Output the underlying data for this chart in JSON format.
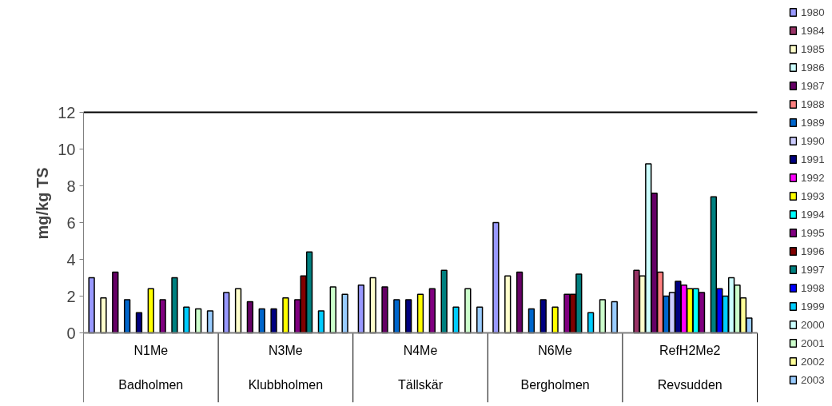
{
  "chart_data": {
    "type": "bar",
    "ylabel": "mg/kg TS",
    "categories": [
      "N1Me\nBadholmen",
      "N3Me\nKlubbholmen",
      "N4Me\nTällskär",
      "N6Me\nBergholmen",
      "RefH2Me2\nRevsudden"
    ],
    "ylim": [
      0,
      12
    ],
    "yticks": [
      0,
      2,
      4,
      6,
      8,
      10,
      12
    ],
    "grid": false,
    "legend": "right",
    "series": [
      {
        "name": "1980",
        "color": "#9999ff",
        "values": [
          3.0,
          2.2,
          2.6,
          6.0,
          null
        ]
      },
      {
        "name": "1984",
        "color": "#993366",
        "values": [
          null,
          null,
          null,
          null,
          3.4
        ]
      },
      {
        "name": "1985",
        "color": "#ffffcc",
        "values": [
          1.9,
          2.4,
          3.0,
          3.1,
          3.1
        ]
      },
      {
        "name": "1986",
        "color": "#ccffff",
        "values": [
          null,
          null,
          null,
          null,
          9.2
        ]
      },
      {
        "name": "1987",
        "color": "#660066",
        "values": [
          3.3,
          1.7,
          2.5,
          3.3,
          7.6
        ]
      },
      {
        "name": "1988",
        "color": "#ff8080",
        "values": [
          null,
          null,
          null,
          null,
          3.3
        ]
      },
      {
        "name": "1989",
        "color": "#0066cc",
        "values": [
          1.8,
          1.3,
          1.8,
          1.3,
          2.0
        ]
      },
      {
        "name": "1990",
        "color": "#ccccff",
        "values": [
          null,
          null,
          null,
          null,
          2.2
        ]
      },
      {
        "name": "1991",
        "color": "#000080",
        "values": [
          1.1,
          1.3,
          1.8,
          1.8,
          2.8
        ]
      },
      {
        "name": "1992",
        "color": "#ff00ff",
        "values": [
          null,
          null,
          null,
          null,
          2.6
        ]
      },
      {
        "name": "1993",
        "color": "#ffff00",
        "values": [
          2.4,
          1.9,
          2.1,
          1.4,
          2.4
        ]
      },
      {
        "name": "1994",
        "color": "#00ffff",
        "values": [
          null,
          null,
          null,
          null,
          2.4
        ]
      },
      {
        "name": "1995",
        "color": "#800080",
        "values": [
          1.8,
          1.8,
          2.4,
          2.1,
          2.2
        ]
      },
      {
        "name": "1996",
        "color": "#800000",
        "values": [
          null,
          3.1,
          null,
          2.1,
          null
        ]
      },
      {
        "name": "1997",
        "color": "#008080",
        "values": [
          3.0,
          4.4,
          3.4,
          3.2,
          7.4
        ]
      },
      {
        "name": "1998",
        "color": "#0000ff",
        "values": [
          null,
          null,
          null,
          null,
          2.4
        ]
      },
      {
        "name": "1999",
        "color": "#00ccff",
        "values": [
          1.4,
          1.2,
          1.4,
          1.1,
          2.0
        ]
      },
      {
        "name": "2000",
        "color": "#ccffff",
        "values": [
          null,
          null,
          null,
          null,
          3.0
        ]
      },
      {
        "name": "2001",
        "color": "#ccffcc",
        "values": [
          1.3,
          2.5,
          2.4,
          1.8,
          2.6
        ]
      },
      {
        "name": "2002",
        "color": "#ffff99",
        "values": [
          null,
          null,
          null,
          null,
          1.9
        ]
      },
      {
        "name": "2003",
        "color": "#99ccff",
        "values": [
          1.2,
          2.1,
          1.4,
          1.7,
          0.8
        ]
      }
    ]
  }
}
